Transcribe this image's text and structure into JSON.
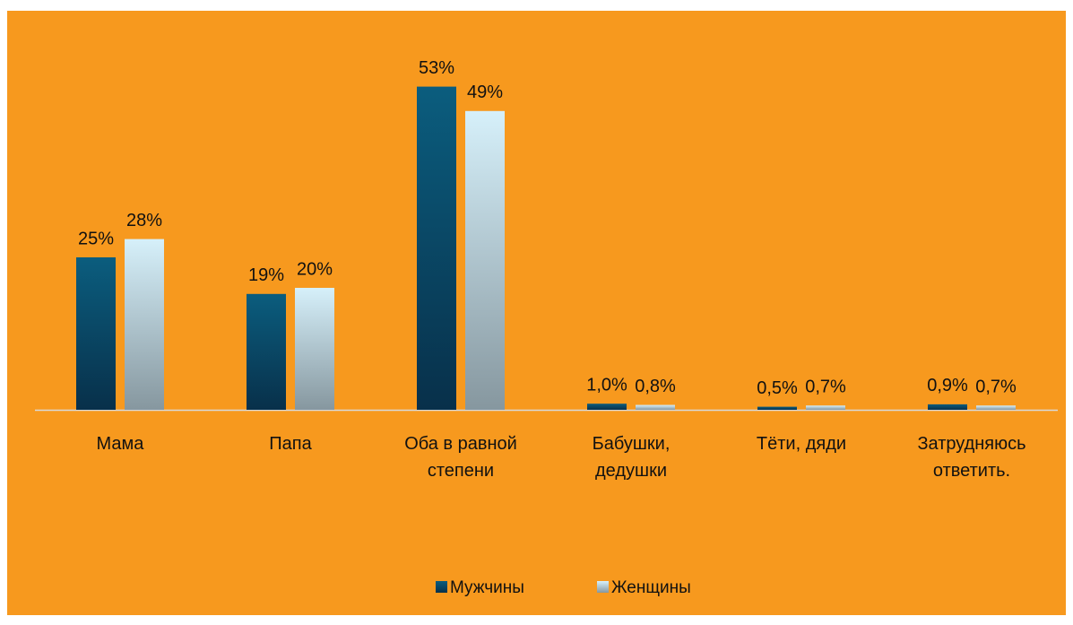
{
  "chart_data": {
    "type": "bar",
    "categories": [
      "Мама",
      "Папа",
      "Оба в равной степени",
      "Бабушки, дедушки",
      "Тёти, дяди",
      "Затрудняюсь ответить."
    ],
    "series": [
      {
        "name": "Мужчины",
        "color": "#0b5d7e",
        "values": [
          25,
          19,
          53,
          1.0,
          0.5,
          0.9
        ],
        "value_labels": [
          "25%",
          "19%",
          "53%",
          "1,0%",
          "0,5%",
          "0,9%"
        ]
      },
      {
        "name": "Женщины",
        "color": "#d6f0fa",
        "values": [
          28,
          20,
          49,
          0.8,
          0.7,
          0.7
        ],
        "value_labels": [
          "28%",
          "20%",
          "49%",
          "0,8%",
          "0,7%",
          "0,7%"
        ]
      }
    ],
    "legend": "bottom"
  }
}
